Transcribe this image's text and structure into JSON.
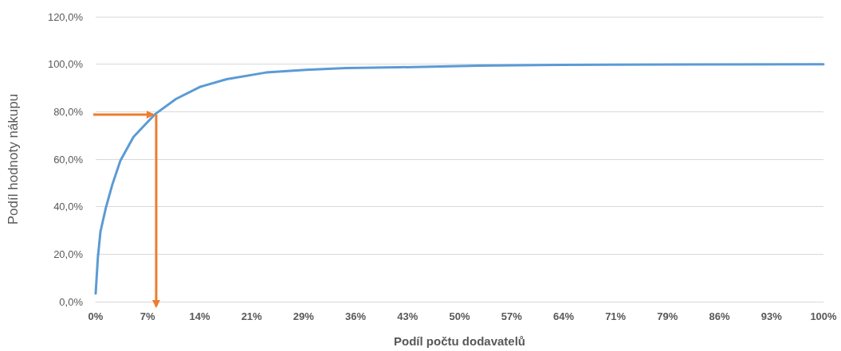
{
  "chart_data": {
    "type": "line",
    "xlabel": "Podíl počtu dodavatelů",
    "ylabel": "Podíl hodnoty nákupu",
    "xlim": [
      0,
      100
    ],
    "ylim": [
      0,
      120
    ],
    "xticks": [
      {
        "value": 0,
        "label": "0%"
      },
      {
        "value": 7.143,
        "label": "7%"
      },
      {
        "value": 14.286,
        "label": "14%"
      },
      {
        "value": 21.429,
        "label": "21%"
      },
      {
        "value": 28.571,
        "label": "29%"
      },
      {
        "value": 35.714,
        "label": "36%"
      },
      {
        "value": 42.857,
        "label": "43%"
      },
      {
        "value": 50,
        "label": "50%"
      },
      {
        "value": 57.143,
        "label": "57%"
      },
      {
        "value": 64.286,
        "label": "64%"
      },
      {
        "value": 71.429,
        "label": "71%"
      },
      {
        "value": 78.571,
        "label": "79%"
      },
      {
        "value": 85.714,
        "label": "86%"
      },
      {
        "value": 92.857,
        "label": "93%"
      },
      {
        "value": 100,
        "label": "100%"
      }
    ],
    "yticks": [
      {
        "value": 0,
        "label": "0,0%"
      },
      {
        "value": 20,
        "label": "20,0%"
      },
      {
        "value": 40,
        "label": "40,0%"
      },
      {
        "value": 60,
        "label": "60,0%"
      },
      {
        "value": 80,
        "label": "80,0%"
      },
      {
        "value": 100,
        "label": "100,0%"
      },
      {
        "value": 120,
        "label": "120,0%"
      }
    ],
    "grid": "y",
    "marker": "none",
    "line_style": "solid",
    "series": [
      {
        "color": "#5b9bd5",
        "x": [
          0,
          0.3,
          0.66,
          1.4,
          2.3,
          3.4,
          5.2,
          8.1,
          11.05,
          14.3,
          18,
          23.4,
          28.9,
          34.4,
          41.7,
          52.6,
          63.6,
          80,
          100
        ],
        "values": [
          3.4,
          18.4,
          29.5,
          39.5,
          49.4,
          59.4,
          69.4,
          78.8,
          85.4,
          90.4,
          93.7,
          96.5,
          97.6,
          98.4,
          98.7,
          99.4,
          99.7,
          99.9,
          100
        ]
      }
    ]
  }
}
